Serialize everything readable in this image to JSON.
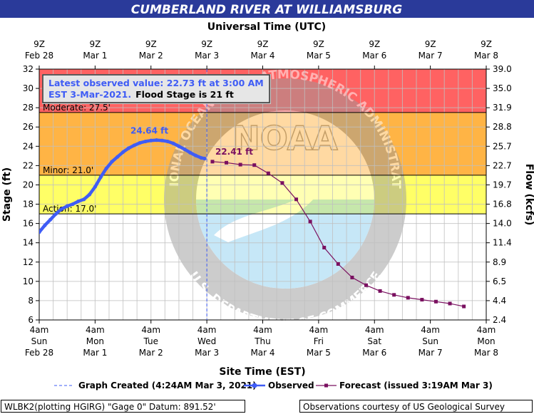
{
  "header": {
    "title": "CUMBERLAND RIVER AT WILLIAMSBURG",
    "top_axis_title": "Universal Time (UTC)"
  },
  "chart_data": {
    "type": "line",
    "title": "CUMBERLAND RIVER AT WILLIAMSBURG",
    "xlabel": "Site Time (EST)",
    "ylabel": "Stage (ft)",
    "y2label": "Flow (kcfs)",
    "ylim": [
      6,
      32
    ],
    "y_ticks": [
      6,
      8,
      10,
      12,
      14,
      16,
      18,
      20,
      22,
      24,
      26,
      28,
      30,
      32
    ],
    "flow_ticks": [
      {
        "stage": 6,
        "label": "2.4"
      },
      {
        "stage": 8,
        "label": "4.4"
      },
      {
        "stage": 10,
        "label": "6.5"
      },
      {
        "stage": 12,
        "label": "8.9"
      },
      {
        "stage": 14,
        "label": "11.4"
      },
      {
        "stage": 16,
        "label": "14.0"
      },
      {
        "stage": 18,
        "label": "16.8"
      },
      {
        "stage": 20,
        "label": "19.7"
      },
      {
        "stage": 22,
        "label": "22.7"
      },
      {
        "stage": 24,
        "label": "25.7"
      },
      {
        "stage": 26,
        "label": "28.8"
      },
      {
        "stage": 28,
        "label": "31.9"
      },
      {
        "stage": 30,
        "label": "35.0"
      },
      {
        "stage": 32,
        "label": "39.0"
      }
    ],
    "x_range": [
      "Feb 28 4am EST",
      "Mar 8 4am EST"
    ],
    "x_ticks_bottom": [
      {
        "line1": "4am",
        "line2": "Sun",
        "line3": "Feb 28"
      },
      {
        "line1": "4am",
        "line2": "Mon",
        "line3": "Mar 1"
      },
      {
        "line1": "4am",
        "line2": "Tue",
        "line3": "Mar 2"
      },
      {
        "line1": "4am",
        "line2": "Wed",
        "line3": "Mar 3"
      },
      {
        "line1": "4am",
        "line2": "Thu",
        "line3": "Mar 4"
      },
      {
        "line1": "4am",
        "line2": "Fri",
        "line3": "Mar 5"
      },
      {
        "line1": "4am",
        "line2": "Sat",
        "line3": "Mar 6"
      },
      {
        "line1": "4am",
        "line2": "Sun",
        "line3": "Mar 7"
      },
      {
        "line1": "4am",
        "line2": "Mon",
        "line3": "Mar 8"
      }
    ],
    "x_ticks_top": [
      {
        "line1": "9Z",
        "line2": "Feb 28"
      },
      {
        "line1": "9Z",
        "line2": "Mar 1"
      },
      {
        "line1": "9Z",
        "line2": "Mar 2"
      },
      {
        "line1": "9Z",
        "line2": "Mar 3"
      },
      {
        "line1": "9Z",
        "line2": "Mar 4"
      },
      {
        "line1": "9Z",
        "line2": "Mar 5"
      },
      {
        "line1": "9Z",
        "line2": "Mar 6"
      },
      {
        "line1": "9Z",
        "line2": "Mar 7"
      },
      {
        "line1": "9Z",
        "line2": "Mar 8"
      }
    ],
    "flood_categories": [
      {
        "name": "Action",
        "label": "Action: 17.0'",
        "from": 17,
        "to": 21,
        "color": "#ffff66"
      },
      {
        "name": "Minor",
        "label": "Minor: 21.0'",
        "from": 21,
        "to": 27.5,
        "color": "#ffb445"
      },
      {
        "name": "Moderate",
        "label": "Moderate: 27.5'",
        "from": 27.5,
        "to": 32,
        "color": "#ff6262"
      }
    ],
    "series": [
      {
        "name": "Observed",
        "color": "#3f5cf5",
        "x_days": [
          0,
          0.1,
          0.2,
          0.3,
          0.4,
          0.5,
          0.6,
          0.7,
          0.8,
          0.9,
          1.0,
          1.1,
          1.2,
          1.3,
          1.4,
          1.5,
          1.6,
          1.7,
          1.8,
          1.9,
          2.0,
          2.1,
          2.2,
          2.3,
          2.4,
          2.5,
          2.6,
          2.7,
          2.8,
          2.9,
          2.96
        ],
        "y": [
          15.1,
          15.8,
          16.4,
          17.0,
          17.5,
          17.8,
          18.0,
          18.3,
          18.5,
          19.0,
          19.8,
          20.8,
          21.7,
          22.4,
          22.9,
          23.4,
          23.8,
          24.1,
          24.35,
          24.5,
          24.6,
          24.64,
          24.6,
          24.5,
          24.3,
          24.0,
          23.7,
          23.35,
          23.05,
          22.8,
          22.73
        ]
      },
      {
        "name": "Forecast (issued 3:19AM Mar 3)",
        "color": "#7a1060",
        "x_days": [
          3.1,
          3.35,
          3.6,
          3.85,
          4.1,
          4.35,
          4.6,
          4.85,
          5.1,
          5.35,
          5.6,
          5.85,
          6.1,
          6.35,
          6.6,
          6.85,
          7.1,
          7.35,
          7.6
        ],
        "y": [
          22.41,
          22.3,
          22.1,
          22.05,
          21.2,
          20.2,
          18.5,
          16.2,
          13.5,
          11.8,
          10.4,
          9.6,
          9.0,
          8.6,
          8.3,
          8.1,
          7.9,
          7.7,
          7.4
        ]
      }
    ],
    "annotations": {
      "latest_observed_line1": "Latest observed value: 22.73 ft at 3:00 AM",
      "latest_observed_line2a": "EST 3-Mar-2021.",
      "latest_observed_line2b": "Flood Stage is 21 ft",
      "observed_peak_label": "24.64 ft",
      "forecast_start_label": "22.41 ft"
    },
    "graph_created_days": 3.0,
    "legend": {
      "placement": "bottom",
      "graph_created": "Graph Created (4:24AM Mar 3, 2021)",
      "observed": "Observed",
      "forecast": "Forecast (issued 3:19AM Mar 3)"
    },
    "grid": true
  },
  "colors": {
    "title_bar": "#2a3a9a",
    "plot_background": "#ffffff",
    "outer_background": "#ffffff",
    "gridline": "#c0c0c0",
    "observed": "#3f5cf5",
    "forecast": "#7a1060",
    "created_line": "#3f5cf5",
    "watermark_blue": "#8fd0f0",
    "watermark_gray": "#8a8a8a"
  },
  "watermark": {
    "logo_text": "NOAA",
    "ring_text_top": "NATIONAL OCEANIC AND ATMOSPHERIC ADMINISTRATION",
    "ring_text_bottom": "U.S. DEPARTMENT OF COMMERCE"
  },
  "footer": {
    "left": "WLBK2(plotting HGIRG) \"Gage 0\" Datum: 891.52'",
    "right": "Observations courtesy of US Geological Survey"
  }
}
